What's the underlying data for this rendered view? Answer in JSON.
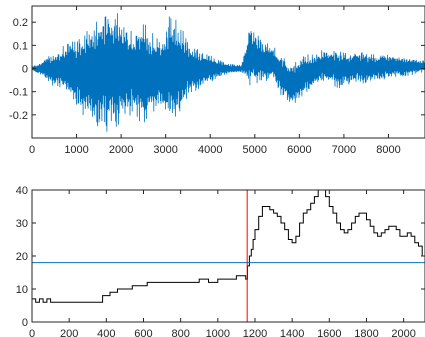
{
  "chart_data": [
    {
      "type": "line",
      "title": "",
      "xlabel": "",
      "ylabel": "",
      "xlim": [
        0,
        8820
      ],
      "ylim": [
        -0.3,
        0.27
      ],
      "xticks": [
        0,
        1000,
        2000,
        3000,
        4000,
        5000,
        6000,
        7000,
        8000
      ],
      "yticks": [
        -0.2,
        -0.1,
        0,
        0.1,
        0.2
      ],
      "ytick_labels": [
        "-0.2",
        "-0.1",
        "0",
        "0.1",
        "0.2"
      ],
      "grid": false,
      "series_color": "#0072BD",
      "envelope": {
        "x": [
          0,
          100,
          200,
          300,
          500,
          700,
          900,
          1100,
          1300,
          1500,
          1700,
          1900,
          2100,
          2300,
          2500,
          2700,
          2900,
          3100,
          3300,
          3500,
          3700,
          3900,
          4100,
          4300,
          4500,
          4700,
          4800,
          4900,
          5000,
          5200,
          5400,
          5600,
          5800,
          5900,
          6100,
          6300,
          6500,
          6700,
          6900,
          7100,
          7300,
          7500,
          7700,
          7900,
          8100,
          8300,
          8500,
          8700,
          8820
        ],
        "upper": [
          0.01,
          0.02,
          0.03,
          0.05,
          0.07,
          0.1,
          0.13,
          0.16,
          0.19,
          0.23,
          0.26,
          0.26,
          0.2,
          0.17,
          0.22,
          0.16,
          0.14,
          0.25,
          0.2,
          0.13,
          0.09,
          0.07,
          0.05,
          0.03,
          0.02,
          0.015,
          0.1,
          0.2,
          0.16,
          0.12,
          0.1,
          0.06,
          0.03,
          0.03,
          0.07,
          0.06,
          0.08,
          0.09,
          0.08,
          0.07,
          0.08,
          0.07,
          0.06,
          0.07,
          0.06,
          0.05,
          0.05,
          0.04,
          0.04
        ],
        "lower": [
          -0.01,
          -0.02,
          -0.03,
          -0.05,
          -0.08,
          -0.1,
          -0.14,
          -0.2,
          -0.24,
          -0.27,
          -0.29,
          -0.28,
          -0.22,
          -0.2,
          -0.26,
          -0.2,
          -0.16,
          -0.27,
          -0.22,
          -0.13,
          -0.1,
          -0.07,
          -0.05,
          -0.03,
          -0.02,
          -0.015,
          -0.05,
          -0.08,
          -0.07,
          -0.06,
          -0.05,
          -0.12,
          -0.17,
          -0.16,
          -0.12,
          -0.09,
          -0.06,
          -0.07,
          -0.09,
          -0.07,
          -0.06,
          -0.07,
          -0.05,
          -0.05,
          -0.04,
          -0.04,
          -0.03,
          -0.02,
          -0.02
        ]
      }
    },
    {
      "type": "line",
      "title": "",
      "xlabel": "",
      "ylabel": "",
      "xlim": [
        0,
        2115
      ],
      "ylim": [
        0,
        40
      ],
      "xticks": [
        0,
        200,
        400,
        600,
        800,
        1000,
        1200,
        1400,
        1600,
        1800,
        2000
      ],
      "yticks": [
        0,
        10,
        20,
        30,
        40
      ],
      "grid": false,
      "series": [
        {
          "kind": "step",
          "color": "#000000",
          "x": [
            0,
            20,
            40,
            60,
            80,
            100,
            200,
            300,
            380,
            420,
            460,
            500,
            540,
            580,
            620,
            660,
            700,
            750,
            800,
            850,
            900,
            950,
            1000,
            1050,
            1100,
            1140,
            1150,
            1160,
            1170,
            1180,
            1190,
            1200,
            1220,
            1240,
            1260,
            1280,
            1300,
            1320,
            1340,
            1360,
            1380,
            1400,
            1420,
            1440,
            1460,
            1480,
            1500,
            1520,
            1540,
            1560,
            1580,
            1600,
            1620,
            1640,
            1660,
            1680,
            1700,
            1720,
            1740,
            1760,
            1780,
            1800,
            1820,
            1840,
            1860,
            1880,
            1900,
            1920,
            1940,
            1960,
            1980,
            2000,
            2020,
            2040,
            2060,
            2080,
            2100,
            2115
          ],
          "y": [
            7,
            6,
            7,
            6,
            7,
            6,
            6,
            6,
            8,
            9,
            10,
            10,
            11,
            11,
            12,
            12,
            12,
            12,
            12,
            12,
            13,
            12,
            13,
            13,
            14,
            14,
            13,
            17,
            20,
            22,
            25,
            28,
            32,
            35,
            35,
            34,
            33,
            32,
            30,
            28,
            25,
            24,
            26,
            30,
            33,
            34,
            36,
            38,
            40,
            40,
            38,
            35,
            33,
            30,
            28,
            27,
            28,
            30,
            32,
            33,
            33,
            31,
            29,
            27,
            26,
            27,
            28,
            29,
            29,
            28,
            26,
            26,
            27,
            26,
            24,
            23,
            20,
            21
          ]
        },
        {
          "kind": "hline",
          "color": "#0072BD",
          "y": 18
        },
        {
          "kind": "vline",
          "color": "#FF0000",
          "x": 1158
        }
      ]
    }
  ]
}
